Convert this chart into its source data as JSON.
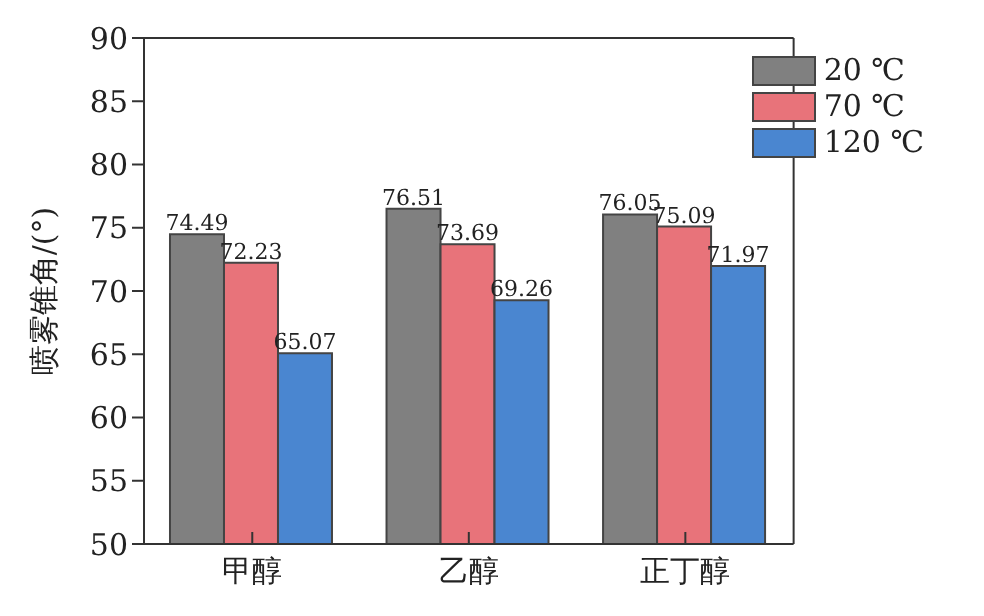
{
  "chart_data": {
    "type": "bar",
    "ylabel": "喷雾锥角/(°)",
    "categories": [
      "甲醇",
      "乙醇",
      "正丁醇"
    ],
    "series": [
      {
        "name": "20 ℃",
        "color": "#808080",
        "values": [
          74.49,
          76.51,
          76.05
        ]
      },
      {
        "name": "70 ℃",
        "color": "#e8737a",
        "values": [
          72.23,
          73.69,
          75.09
        ]
      },
      {
        "name": "120 ℃",
        "color": "#4a86d0",
        "values": [
          65.07,
          69.26,
          71.97
        ]
      }
    ],
    "ylim": [
      50,
      90
    ],
    "yticks": [
      50,
      55,
      60,
      65,
      70,
      75,
      80,
      85,
      90
    ],
    "data_labels": true,
    "legend": "top right",
    "grid": false
  }
}
